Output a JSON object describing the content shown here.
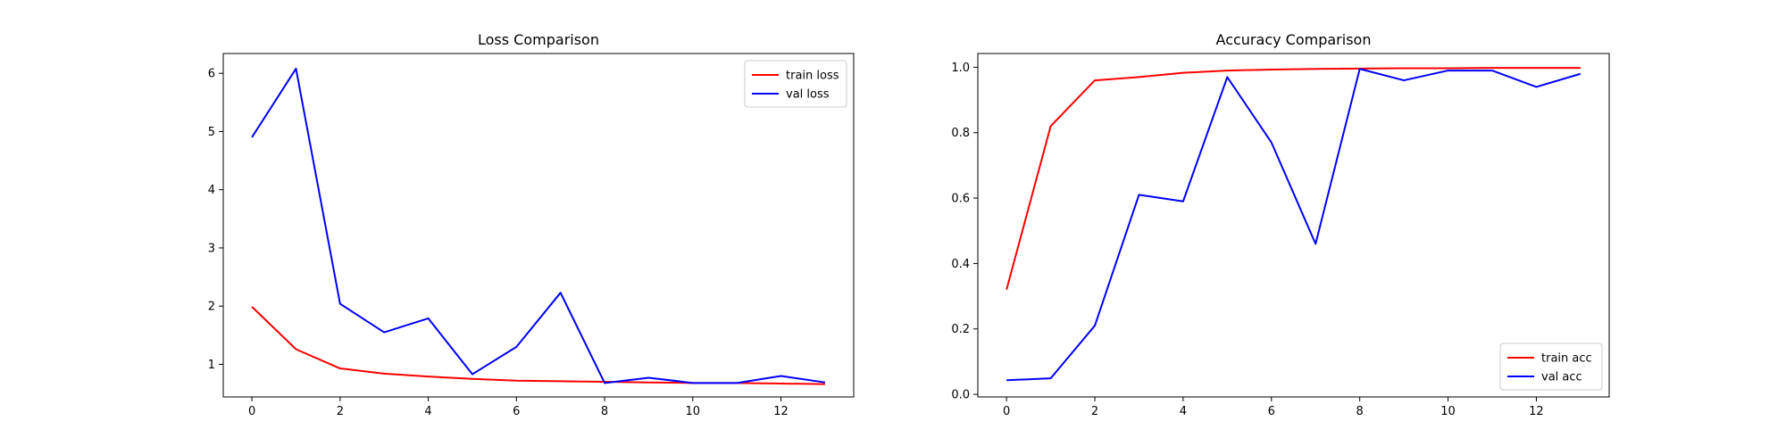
{
  "chart_data": [
    {
      "type": "line",
      "title": "Loss Comparison",
      "xlabel": "",
      "ylabel": "",
      "x": [
        0,
        1,
        2,
        3,
        4,
        5,
        6,
        7,
        8,
        9,
        10,
        11,
        12,
        13
      ],
      "xlim": [
        -0.65,
        13.65
      ],
      "ylim": [
        0.44,
        6.34
      ],
      "xticks": [
        0,
        2,
        4,
        6,
        8,
        10,
        12
      ],
      "yticks": [
        1,
        2,
        3,
        4,
        5,
        6
      ],
      "grid": false,
      "legend_position": "upper right",
      "series": [
        {
          "name": "train loss",
          "color": "#ff0000",
          "values": [
            1.99,
            1.26,
            0.93,
            0.84,
            0.79,
            0.75,
            0.72,
            0.71,
            0.7,
            0.69,
            0.68,
            0.68,
            0.67,
            0.66
          ]
        },
        {
          "name": "val loss",
          "color": "#0000ff",
          "values": [
            4.9,
            6.08,
            2.04,
            1.55,
            1.79,
            0.83,
            1.3,
            2.23,
            0.68,
            0.77,
            0.68,
            0.68,
            0.8,
            0.69
          ]
        }
      ]
    },
    {
      "type": "line",
      "title": "Accuracy Comparison",
      "xlabel": "",
      "ylabel": "",
      "x": [
        0,
        1,
        2,
        3,
        4,
        5,
        6,
        7,
        8,
        9,
        10,
        11,
        12,
        13
      ],
      "xlim": [
        -0.65,
        13.65
      ],
      "ylim": [
        -0.008,
        1.042
      ],
      "xticks": [
        0,
        2,
        4,
        6,
        8,
        10,
        12
      ],
      "yticks": [
        0.0,
        0.2,
        0.4,
        0.6,
        0.8,
        1.0
      ],
      "grid": false,
      "legend_position": "lower right",
      "series": [
        {
          "name": "train acc",
          "color": "#ff0000",
          "values": [
            0.32,
            0.82,
            0.96,
            0.97,
            0.983,
            0.99,
            0.993,
            0.995,
            0.996,
            0.997,
            0.997,
            0.998,
            0.998,
            0.998
          ]
        },
        {
          "name": "val acc",
          "color": "#0000ff",
          "values": [
            0.043,
            0.049,
            0.21,
            0.61,
            0.59,
            0.97,
            0.77,
            0.46,
            0.995,
            0.96,
            0.99,
            0.99,
            0.94,
            0.98
          ]
        }
      ]
    }
  ]
}
